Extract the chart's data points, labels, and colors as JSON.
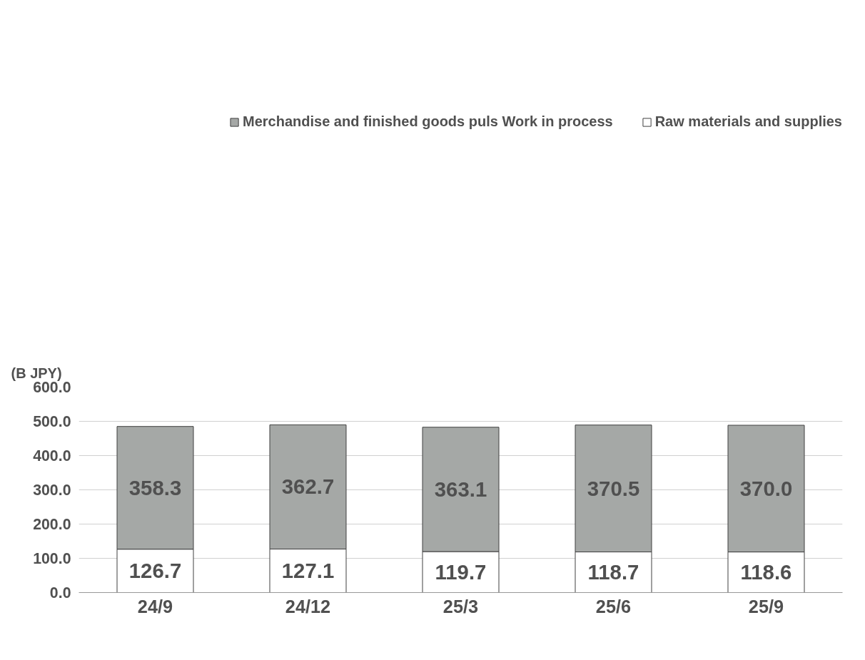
{
  "chart_data": {
    "type": "bar",
    "stacked": true,
    "annotations": [
      "(B JPY)"
    ],
    "categories": [
      "24/9",
      "24/12",
      "25/3",
      "25/6",
      "25/9"
    ],
    "series": [
      {
        "name": "Raw materials and supplies",
        "color": "#ffffff",
        "values": [
          126.7,
          127.1,
          119.7,
          118.7,
          118.6
        ],
        "value_labels": [
          "126.7",
          "127.1",
          "119.7",
          "118.7",
          "118.6"
        ]
      },
      {
        "name": "Merchandise and finished goods puls Work in process",
        "color": "#a5a8a6",
        "values": [
          358.3,
          362.7,
          363.1,
          370.5,
          370.0
        ],
        "value_labels": [
          "358.3",
          "362.7",
          "363.1",
          "370.5",
          "370.0"
        ]
      }
    ],
    "ylim": [
      0,
      600
    ],
    "yticks": [
      {
        "value": 0,
        "label": "0.0"
      },
      {
        "value": 100,
        "label": "100.0"
      },
      {
        "value": 200,
        "label": "200.0"
      },
      {
        "value": 300,
        "label": "300.0"
      },
      {
        "value": 400,
        "label": "400.0"
      },
      {
        "value": 500,
        "label": "500.0"
      },
      {
        "value": 600,
        "label": "600.0"
      }
    ],
    "grid": "y",
    "legend": "top"
  }
}
